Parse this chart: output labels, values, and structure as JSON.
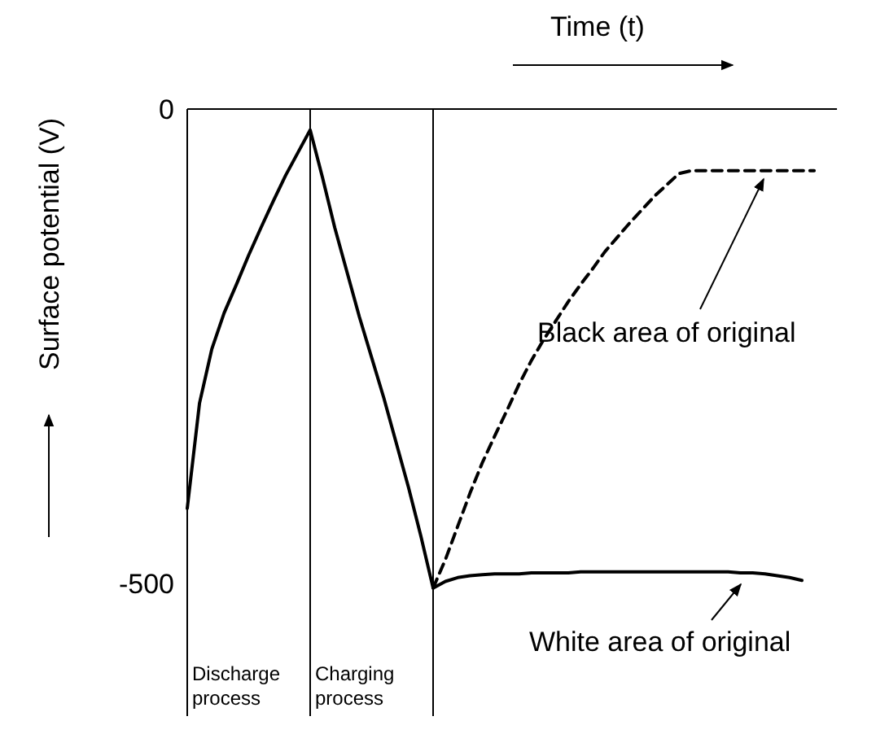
{
  "chart_data": {
    "type": "line",
    "xlabel": "Time (t)",
    "ylabel": "Surface potential (V)",
    "categories": [
      null,
      null,
      null,
      null,
      null,
      null,
      null,
      null,
      null,
      null,
      null,
      null,
      null,
      null,
      null,
      null,
      null,
      null,
      null,
      null,
      null,
      null,
      null,
      null,
      null,
      null,
      null,
      null,
      null,
      null,
      null,
      null,
      null,
      null,
      null,
      null,
      null,
      null,
      null,
      null,
      null,
      null,
      null,
      null,
      null,
      null,
      null,
      null,
      null,
      null,
      null,
      null
    ],
    "ylim": [
      -640,
      0
    ],
    "yticks": [
      0,
      -500
    ],
    "tick_labels": "y",
    "marker": "none",
    "series": [
      {
        "color": "#000000",
        "line_style": "solid",
        "values": [
          -421,
          -310,
          -253,
          -215,
          -185,
          -154,
          -125,
          -97,
          -70,
          -46,
          -22,
          -72,
          -125,
          -172,
          -219,
          -262,
          -305,
          -352,
          -399,
          -450,
          -505,
          -498,
          -494,
          -492,
          -491,
          -490,
          -490,
          -490,
          -489,
          -489,
          -489,
          -489,
          -488,
          -488,
          -488,
          -488,
          -488,
          -488,
          -488,
          -488,
          -488,
          -488,
          -488,
          -488,
          -488,
          -489,
          -489,
          -490,
          -492,
          -494,
          -497,
          null
        ]
      },
      {
        "color": "#000000",
        "line_style": "dashed",
        "values": [
          null,
          null,
          null,
          null,
          null,
          null,
          null,
          null,
          null,
          null,
          null,
          null,
          null,
          null,
          null,
          null,
          null,
          null,
          null,
          null,
          -505,
          -475,
          -440,
          -405,
          -373,
          -345,
          -318,
          -290,
          -265,
          -243,
          -223,
          -203,
          -185,
          -168,
          -150,
          -135,
          -120,
          -106,
          -92,
          -80,
          -68,
          -65,
          -65,
          -65,
          -65,
          -65,
          -65,
          -65,
          -65,
          -65,
          -65,
          -65
        ]
      }
    ],
    "annotations": [
      "Black area of original",
      "White area of original",
      "Discharge process",
      "Charging process"
    ]
  }
}
